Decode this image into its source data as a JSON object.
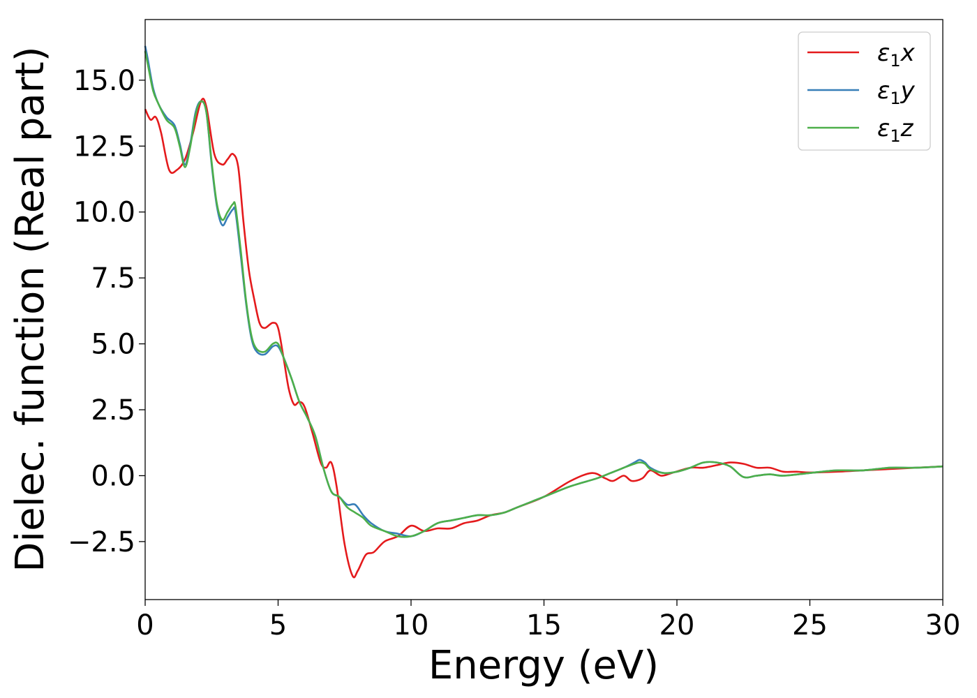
{
  "chart_data": {
    "type": "line",
    "xlabel": "Energy (eV)",
    "ylabel": "Dielec. function (Real part)",
    "xlim": [
      0,
      30
    ],
    "ylim": [
      -4.7,
      17.3
    ],
    "xticks": [
      0,
      5,
      10,
      15,
      20,
      25,
      30
    ],
    "xtick_labels": [
      "0",
      "5",
      "10",
      "15",
      "20",
      "25",
      "30"
    ],
    "yticks": [
      -2.5,
      0.0,
      2.5,
      5.0,
      7.5,
      10.0,
      12.5,
      15.0
    ],
    "ytick_labels": [
      "−2.5",
      "0.0",
      "2.5",
      "5.0",
      "7.5",
      "10.0",
      "12.5",
      "15.0"
    ],
    "grid": false,
    "legend_position": "top-right",
    "series": [
      {
        "name": "ε1x",
        "legend_base": "ε",
        "legend_sub": "1",
        "legend_var": "x",
        "color": "#e41a1c",
        "x": [
          0,
          0.2,
          0.4,
          0.6,
          0.9,
          1.2,
          1.5,
          1.8,
          2.1,
          2.3,
          2.6,
          2.9,
          3.1,
          3.3,
          3.5,
          3.7,
          3.9,
          4.1,
          4.3,
          4.5,
          4.8,
          5.0,
          5.2,
          5.4,
          5.6,
          5.8,
          6.0,
          6.3,
          6.6,
          6.8,
          7.0,
          7.2,
          7.5,
          7.8,
          8.0,
          8.3,
          8.6,
          9.0,
          9.5,
          10.0,
          10.5,
          11.0,
          11.5,
          12.0,
          12.5,
          13.0,
          13.5,
          14.0,
          15.0,
          16.0,
          16.8,
          17.3,
          17.6,
          18.0,
          18.3,
          18.7,
          19.0,
          19.4,
          19.8,
          20.5,
          21.0,
          21.5,
          22.0,
          22.5,
          23.0,
          23.5,
          24.0,
          24.5,
          25.0,
          26.0,
          27.0,
          28.0,
          29.0,
          30.0
        ],
        "y": [
          13.9,
          13.5,
          13.6,
          13.0,
          11.6,
          11.6,
          12.0,
          13.0,
          14.2,
          14.0,
          12.2,
          11.8,
          12.0,
          12.2,
          11.7,
          9.6,
          7.8,
          6.7,
          5.8,
          5.6,
          5.8,
          5.6,
          4.5,
          3.3,
          2.7,
          2.8,
          2.6,
          1.6,
          0.5,
          0.3,
          0.5,
          -0.4,
          -2.6,
          -3.8,
          -3.6,
          -3.0,
          -2.9,
          -2.5,
          -2.3,
          -1.9,
          -2.1,
          -2.0,
          -2.0,
          -1.8,
          -1.7,
          -1.5,
          -1.4,
          -1.2,
          -0.8,
          -0.2,
          0.1,
          -0.1,
          -0.2,
          0.0,
          -0.2,
          -0.1,
          0.2,
          0.0,
          0.1,
          0.3,
          0.3,
          0.4,
          0.5,
          0.45,
          0.3,
          0.3,
          0.15,
          0.15,
          0.12,
          0.15,
          0.2,
          0.25,
          0.3,
          0.35
        ]
      },
      {
        "name": "ε1y",
        "legend_base": "ε",
        "legend_sub": "1",
        "legend_var": "y",
        "color": "#377eb8",
        "x": [
          0,
          0.1,
          0.3,
          0.5,
          0.8,
          1.1,
          1.3,
          1.5,
          1.7,
          1.9,
          2.1,
          2.3,
          2.5,
          2.7,
          2.9,
          3.1,
          3.3,
          3.4,
          3.6,
          3.8,
          4.0,
          4.2,
          4.5,
          4.8,
          5.0,
          5.2,
          5.5,
          5.8,
          6.1,
          6.4,
          6.7,
          7.0,
          7.3,
          7.6,
          7.9,
          8.2,
          8.5,
          9.0,
          9.5,
          10.0,
          10.5,
          11.0,
          11.5,
          12.0,
          12.5,
          13.0,
          13.5,
          14.0,
          15.0,
          16.0,
          17.0,
          17.5,
          18.0,
          18.4,
          18.6,
          18.8,
          19.0,
          19.5,
          20.0,
          20.5,
          21.0,
          21.5,
          22.0,
          22.5,
          23.0,
          23.5,
          24.0,
          25.0,
          26.0,
          27.0,
          28.0,
          29.0,
          30.0
        ],
        "y": [
          16.3,
          15.8,
          14.7,
          14.1,
          13.6,
          13.3,
          12.6,
          11.8,
          12.6,
          13.8,
          14.2,
          13.8,
          11.8,
          10.2,
          9.5,
          9.8,
          10.1,
          10.0,
          8.3,
          6.5,
          5.2,
          4.7,
          4.6,
          4.9,
          4.9,
          4.5,
          3.7,
          2.8,
          2.2,
          1.5,
          0.3,
          -0.6,
          -0.8,
          -1.1,
          -1.1,
          -1.5,
          -1.8,
          -2.1,
          -2.2,
          -2.3,
          -2.1,
          -1.8,
          -1.7,
          -1.6,
          -1.5,
          -1.5,
          -1.4,
          -1.2,
          -0.8,
          -0.4,
          -0.1,
          0.1,
          0.3,
          0.5,
          0.6,
          0.5,
          0.3,
          0.1,
          0.15,
          0.3,
          0.5,
          0.5,
          0.35,
          -0.05,
          0.0,
          0.05,
          0.0,
          0.1,
          0.2,
          0.2,
          0.3,
          0.3,
          0.35
        ]
      },
      {
        "name": "ε1z",
        "legend_base": "ε",
        "legend_sub": "1",
        "legend_var": "z",
        "color": "#4daf4a",
        "x": [
          0,
          0.1,
          0.3,
          0.5,
          0.8,
          1.1,
          1.3,
          1.5,
          1.7,
          1.9,
          2.1,
          2.3,
          2.5,
          2.7,
          2.9,
          3.1,
          3.3,
          3.4,
          3.6,
          3.8,
          4.0,
          4.2,
          4.5,
          4.8,
          5.0,
          5.2,
          5.5,
          5.8,
          6.1,
          6.4,
          6.7,
          7.0,
          7.3,
          7.6,
          7.9,
          8.2,
          8.5,
          9.0,
          9.5,
          10.0,
          10.5,
          11.0,
          11.5,
          12.0,
          12.5,
          13.0,
          13.5,
          14.0,
          15.0,
          16.0,
          17.0,
          17.5,
          18.0,
          18.4,
          18.6,
          18.8,
          19.0,
          19.5,
          20.0,
          20.5,
          21.0,
          21.5,
          22.0,
          22.5,
          23.0,
          23.5,
          24.0,
          25.0,
          26.0,
          27.0,
          28.0,
          29.0,
          30.0
        ],
        "y": [
          16.1,
          15.6,
          14.6,
          14.1,
          13.5,
          13.2,
          12.5,
          11.7,
          12.5,
          13.7,
          14.2,
          13.8,
          11.9,
          10.3,
          9.7,
          10.0,
          10.3,
          10.2,
          8.5,
          6.6,
          5.3,
          4.8,
          4.7,
          5.0,
          5.0,
          4.5,
          3.7,
          2.8,
          2.2,
          1.5,
          0.3,
          -0.6,
          -0.8,
          -1.2,
          -1.4,
          -1.6,
          -1.9,
          -2.1,
          -2.3,
          -2.3,
          -2.1,
          -1.8,
          -1.7,
          -1.6,
          -1.5,
          -1.5,
          -1.4,
          -1.2,
          -0.8,
          -0.4,
          -0.1,
          0.1,
          0.3,
          0.45,
          0.5,
          0.45,
          0.25,
          0.1,
          0.15,
          0.3,
          0.5,
          0.5,
          0.35,
          -0.05,
          0.0,
          0.05,
          0.0,
          0.1,
          0.2,
          0.2,
          0.3,
          0.3,
          0.35
        ]
      }
    ]
  }
}
